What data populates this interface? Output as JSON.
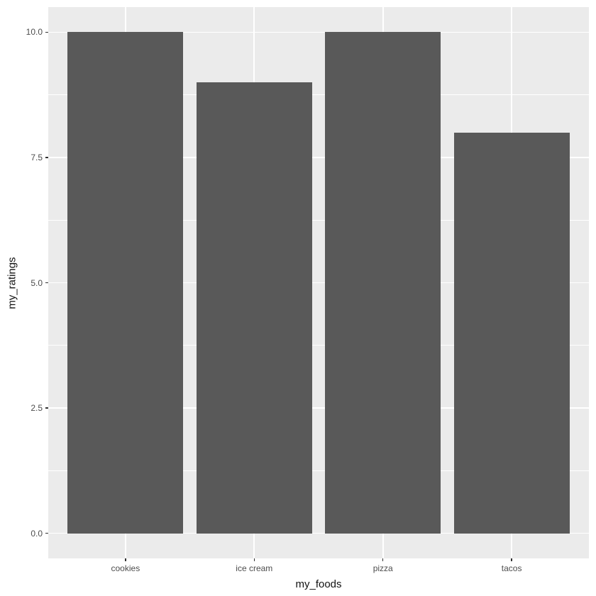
{
  "chart_data": {
    "type": "bar",
    "categories": [
      "cookies",
      "ice cream",
      "pizza",
      "tacos"
    ],
    "values": [
      10,
      9,
      10,
      8
    ],
    "title": "",
    "xlabel": "my_foods",
    "ylabel": "my_ratings",
    "ylim": [
      0,
      10
    ],
    "y_ticks": [
      0.0,
      2.5,
      5.0,
      7.5,
      10.0
    ],
    "y_tick_labels": [
      "0.0",
      "2.5",
      "5.0",
      "7.5",
      "10.0"
    ],
    "y_minor_ticks": [
      1.25,
      3.75,
      6.25,
      8.75
    ],
    "bar_rel_width": 0.9,
    "legend_position": "none",
    "grid": true,
    "style": "ggplot2"
  },
  "colors": {
    "bar": "#595959",
    "panel_bg": "#EBEBEB",
    "grid_major": "#FFFFFF",
    "grid_minor": "#FFFFFF",
    "tick_mark": "#333333",
    "tick_label": "#4D4D4D",
    "axis_title": "#111111",
    "page_bg": "#FFFFFF"
  }
}
